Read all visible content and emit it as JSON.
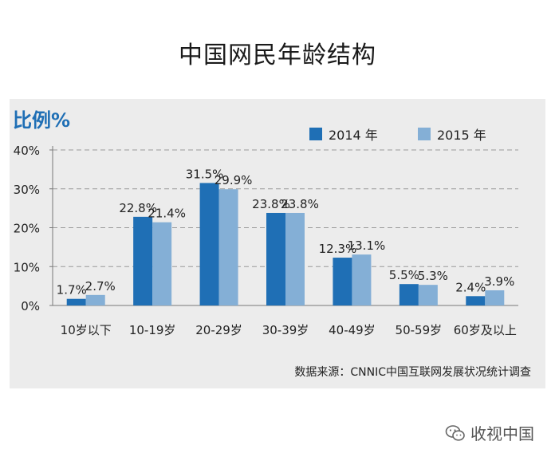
{
  "title": "中国网民年龄结构",
  "source": "数据来源：CNNIC中国互联网发展状况统计调查",
  "watermark": "收视中国",
  "watermark_icon": "wechat-icon",
  "chart_data": {
    "type": "bar",
    "title": "中国网民年龄结构",
    "ylabel": "比例%",
    "xlabel": "",
    "ylim": [
      0,
      40
    ],
    "yticks": [
      "0%",
      "10%",
      "20%",
      "30%",
      "40%"
    ],
    "grid": true,
    "legend_position": "top-right",
    "categories": [
      "10岁以下",
      "10-19岁",
      "20-29岁",
      "30-39岁",
      "40-49岁",
      "50-59岁",
      "60岁及以上"
    ],
    "series": [
      {
        "name": "2014 年",
        "color": "#1f6fb5",
        "values": [
          1.7,
          22.8,
          31.5,
          23.8,
          12.3,
          5.5,
          2.4
        ],
        "labels": [
          "1.7%",
          "22.8%",
          "31.5%",
          "23.8%",
          "12.3%",
          "5.5%",
          "2.4%"
        ]
      },
      {
        "name": "2015  年",
        "color": "#84afd6",
        "values": [
          2.7,
          21.4,
          29.9,
          23.8,
          13.1,
          5.3,
          3.9
        ],
        "labels": [
          "2.7%",
          "21.4%",
          "29.9%",
          "23.8%",
          "13.1%",
          "5.3%",
          "3.9%"
        ]
      }
    ]
  }
}
